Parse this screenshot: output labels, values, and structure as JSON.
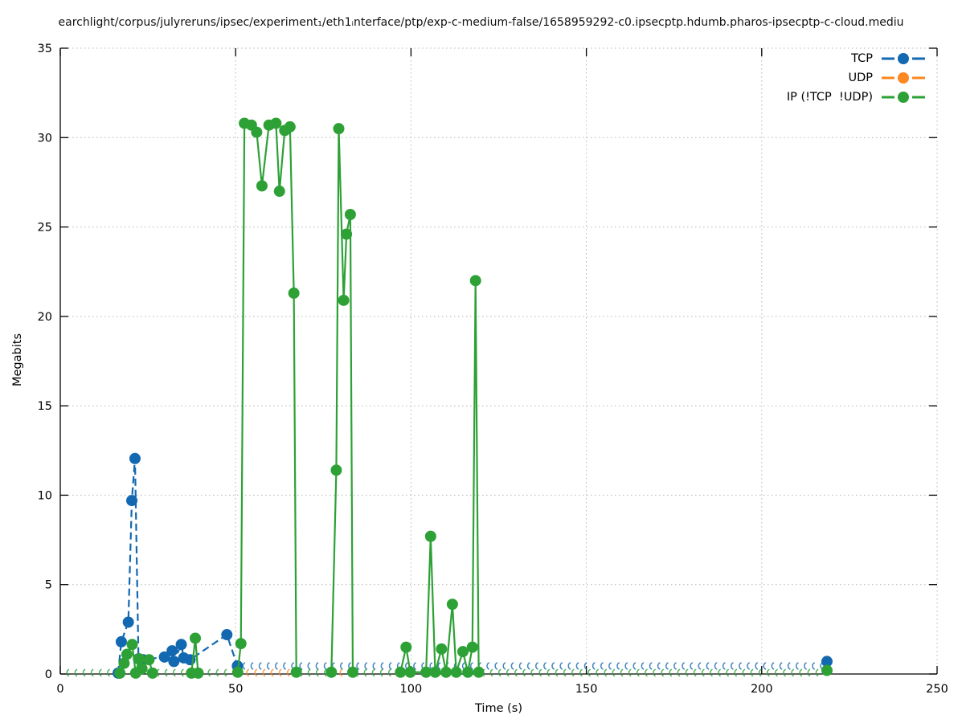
{
  "title": "earchlight/corpus/julyreruns/ipsec/experiment₁/eth1ᵢnterface/ptp/exp-c-medium-false/1658959292-c0.ipsecptp.hdumb.pharos-ipsecptp-c-cloud.mediu",
  "chart_data": {
    "type": "line",
    "title": "earchlight/corpus/julyreruns/ipsec/experiment₁/eth1ᵢnterface/ptp/exp-c-medium-false/1658959292-c0.ipsecptp.hdumb.pharos-ipsecptp-c-cloud.mediu",
    "xlabel": "Time (s)",
    "ylabel": "Megabits",
    "xlim": [
      0,
      250
    ],
    "ylim": [
      0,
      35
    ],
    "xticks": [
      0,
      50,
      100,
      150,
      200,
      250
    ],
    "yticks": [
      0,
      5,
      10,
      15,
      20,
      25,
      30,
      35
    ],
    "grid": true,
    "legend_position": "top-right",
    "colors": {
      "grid": "#b5b5b5",
      "border": "#000000"
    },
    "series": [
      {
        "name": "TCP",
        "color": "#1268b1",
        "dash": "9,5",
        "segments": [
          [
            [
              16.5,
              0.05
            ],
            [
              17.4,
              1.8
            ],
            [
              19.4,
              2.9
            ],
            [
              20.4,
              9.7
            ],
            [
              21.3,
              12.05
            ],
            [
              22.3,
              0.85
            ],
            [
              23.6,
              0.8
            ],
            [
              29.7,
              0.95
            ],
            [
              31.9,
              1.3
            ],
            [
              32.4,
              0.7
            ],
            [
              34.5,
              1.65
            ],
            [
              35.2,
              0.9
            ],
            [
              37.0,
              0.8
            ],
            [
              47.5,
              2.2
            ],
            [
              50.5,
              0.45
            ]
          ]
        ],
        "isolated_points": [
          [
            218.6,
            0.7
          ]
        ],
        "baseline_markers": [
          {
            "from": 52.2,
            "to": 217.4,
            "step": 2.32,
            "y": 0.45
          }
        ]
      },
      {
        "name": "UDP",
        "color": "#fd8720",
        "dash": "9,5",
        "segments": [],
        "isolated_points": [],
        "baseline_markers": [
          {
            "from": 53.3,
            "to": 67.0,
            "step": 2.32,
            "y": 0.07
          },
          {
            "from": 77.6,
            "to": 83.4,
            "step": 2.32,
            "y": 0.07
          }
        ]
      },
      {
        "name": "IP (!TCP  !UDP)",
        "color": "#2da135",
        "dash": "",
        "segments": [
          [
            [
              17.0,
              0.05
            ],
            [
              18.2,
              0.6
            ],
            [
              19.0,
              1.1
            ],
            [
              20.5,
              1.65
            ],
            [
              21.5,
              0.05
            ],
            [
              22.5,
              0.85
            ],
            [
              23.3,
              0.3
            ],
            [
              25.3,
              0.8
            ],
            [
              26.3,
              0.05
            ]
          ],
          [
            [
              37.4,
              0.05
            ],
            [
              38.5,
              2.0
            ],
            [
              39.3,
              0.05
            ]
          ],
          [
            [
              50.6,
              0.1
            ],
            [
              51.5,
              1.7
            ],
            [
              52.5,
              30.8
            ],
            [
              54.5,
              30.7
            ],
            [
              56.0,
              30.3
            ],
            [
              57.5,
              27.3
            ],
            [
              59.5,
              30.7
            ],
            [
              61.5,
              30.8
            ],
            [
              62.5,
              27.0
            ],
            [
              64.0,
              30.4
            ],
            [
              65.5,
              30.6
            ],
            [
              66.6,
              21.3
            ],
            [
              67.3,
              0.1
            ]
          ],
          [
            [
              77.3,
              0.1
            ],
            [
              78.7,
              11.4
            ],
            [
              79.4,
              30.5
            ],
            [
              80.8,
              20.9
            ],
            [
              81.6,
              24.6
            ],
            [
              82.7,
              25.7
            ],
            [
              83.4,
              0.1
            ]
          ],
          [
            [
              97.0,
              0.1
            ],
            [
              98.6,
              1.5
            ],
            [
              99.8,
              0.1
            ],
            [
              104.3,
              0.1
            ],
            [
              105.6,
              7.7
            ],
            [
              106.9,
              0.1
            ],
            [
              108.7,
              1.4
            ],
            [
              110.0,
              0.1
            ],
            [
              111.8,
              3.9
            ],
            [
              112.9,
              0.1
            ],
            [
              114.8,
              1.25
            ],
            [
              116.2,
              0.1
            ],
            [
              117.5,
              1.5
            ],
            [
              118.4,
              22.0
            ],
            [
              119.3,
              0.1
            ]
          ]
        ],
        "isolated_points": [
          [
            218.6,
            0.2
          ]
        ],
        "baseline_markers": [
          {
            "from": 2.0,
            "to": 15.9,
            "step": 2.32,
            "y": 0.07
          },
          {
            "from": 27.7,
            "to": 36.9,
            "step": 2.32,
            "y": 0.07
          },
          {
            "from": 40.0,
            "to": 49.3,
            "step": 2.32,
            "y": 0.07
          },
          {
            "from": 68.5,
            "to": 76.4,
            "step": 2.32,
            "y": 0.07
          },
          {
            "from": 84.5,
            "to": 96.0,
            "step": 2.32,
            "y": 0.07
          },
          {
            "from": 120.5,
            "to": 217.4,
            "step": 2.32,
            "y": 0.07
          }
        ]
      }
    ]
  }
}
